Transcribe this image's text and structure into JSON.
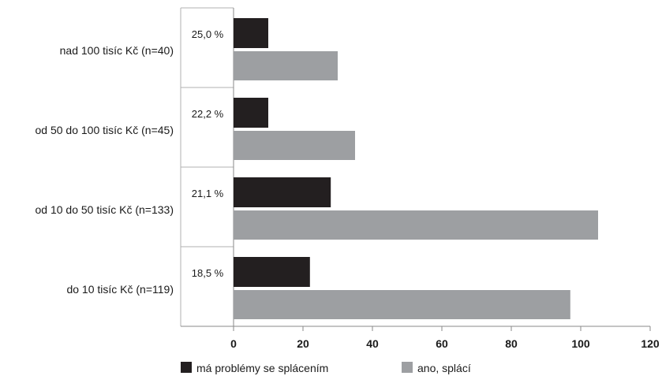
{
  "chart_data": {
    "type": "bar",
    "orientation": "horizontal",
    "categories": [
      "nad 100 tisíc Kč (n=40)",
      "od 50 do 100 tisíc Kč (n=45)",
      "od 10 do 50 tisíc Kč (n=133)",
      "do 10 tisíc Kč (n=119)"
    ],
    "series": [
      {
        "name": "má problémy se splácením",
        "color": "#231f20",
        "values": [
          10,
          10,
          28,
          22
        ]
      },
      {
        "name": "ano, splácí",
        "color": "#9d9fa2",
        "values": [
          30,
          35,
          105,
          97
        ]
      }
    ],
    "percent_labels": [
      "25,0 %",
      "22,2 %",
      "21,1 %",
      "18,5 %"
    ],
    "xlim": [
      0,
      120
    ],
    "xticks": [
      0,
      20,
      40,
      60,
      80,
      100,
      120
    ],
    "title": "",
    "xlabel": "",
    "ylabel": "",
    "grid": false,
    "legend_position": "bottom"
  }
}
